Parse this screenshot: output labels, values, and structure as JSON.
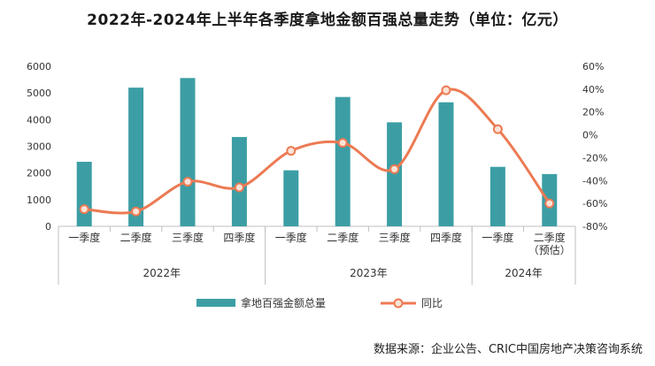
{
  "chart_data": {
    "type": "bar",
    "title": "2022年-2024年上半年各季度拿地金额百强总量走势（单位：亿元）",
    "groups": [
      {
        "label": "2022年",
        "count": 4
      },
      {
        "label": "2023年",
        "count": 4
      },
      {
        "label": "2024年",
        "count": 2
      }
    ],
    "categories": [
      "一季度",
      "二季度",
      "三季度",
      "四季度",
      "一季度",
      "二季度",
      "三季度",
      "四季度",
      "一季度",
      "二季度\n（预估）"
    ],
    "series": [
      {
        "name": "拿地百强金额总量",
        "type": "bar",
        "axis": "left",
        "values": [
          2420,
          5200,
          5560,
          3350,
          2100,
          4850,
          3900,
          4650,
          2230,
          1960
        ]
      },
      {
        "name": "同比",
        "type": "line",
        "axis": "right",
        "values": [
          -65,
          -67,
          -41,
          -46,
          -14,
          -7,
          -30,
          39,
          5,
          -60
        ]
      }
    ],
    "y_left": {
      "min": 0,
      "max": 6000,
      "ticks": [
        "0",
        "1000",
        "2000",
        "3000",
        "4000",
        "5000",
        "6000"
      ]
    },
    "y_right": {
      "min": -80,
      "max": 60,
      "ticks": [
        "-80%",
        "-60%",
        "-40%",
        "-20%",
        "0%",
        "20%",
        "40%",
        "60%"
      ]
    },
    "colors": {
      "bar": "#3c9ea4",
      "line": "#ec7a53",
      "marker_fill": "#fbe3d7"
    },
    "legend_position": "bottom",
    "grid": false
  },
  "source": "数据来源：企业公告、CRIC中国房地产决策咨询系统"
}
